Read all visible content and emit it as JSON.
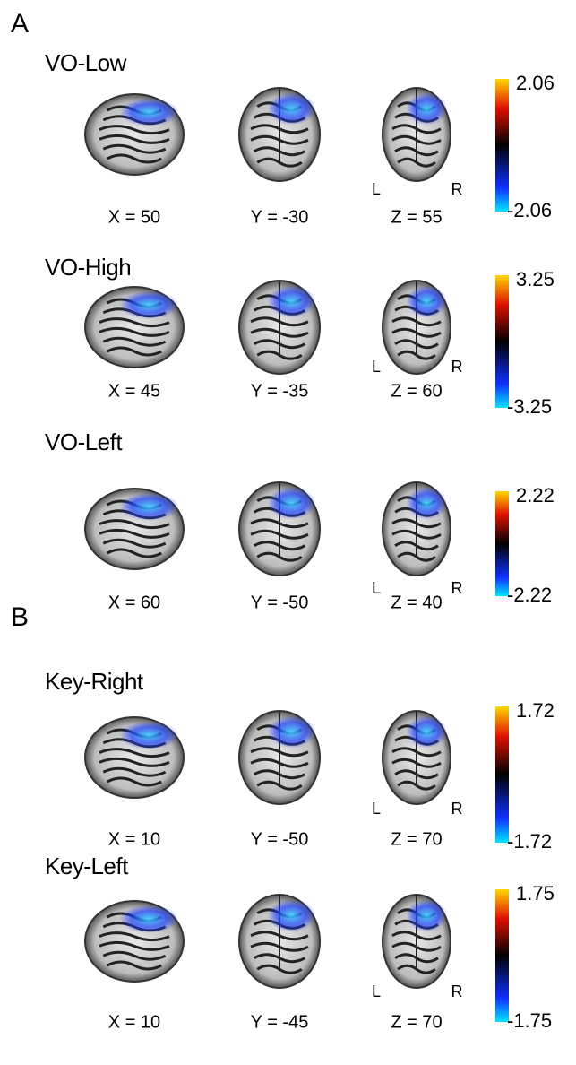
{
  "panels": [
    {
      "label": "A",
      "rows": [
        {
          "title": "VO-Low",
          "slices": [
            "X = 50",
            "Y = -30",
            "Z = 55"
          ],
          "orientation": [
            "L",
            "R"
          ],
          "colorbar": {
            "max": "2.06",
            "min": "-2.06"
          }
        },
        {
          "title": "VO-High",
          "slices": [
            "X = 45",
            "Y = -35",
            "Z = 60"
          ],
          "orientation": [
            "L",
            "R"
          ],
          "colorbar": {
            "max": "3.25",
            "min": "-3.25"
          }
        },
        {
          "title": "VO-Left",
          "slices": [
            "X = 60",
            "Y = -50",
            "Z = 40"
          ],
          "orientation": [
            "L",
            "R"
          ],
          "colorbar": {
            "max": "2.22",
            "min": "-2.22"
          }
        }
      ]
    },
    {
      "label": "B",
      "rows": [
        {
          "title": "Key-Right",
          "slices": [
            "X = 10",
            "Y = -50",
            "Z = 70"
          ],
          "orientation": [
            "L",
            "R"
          ],
          "colorbar": {
            "max": "1.72",
            "min": "-1.72"
          }
        },
        {
          "title": "Key-Left",
          "slices": [
            "X = 10",
            "Y = -45",
            "Z = 70"
          ],
          "orientation": [
            "L",
            "R"
          ],
          "colorbar": {
            "max": "1.75",
            "min": "-1.75"
          }
        }
      ]
    }
  ]
}
